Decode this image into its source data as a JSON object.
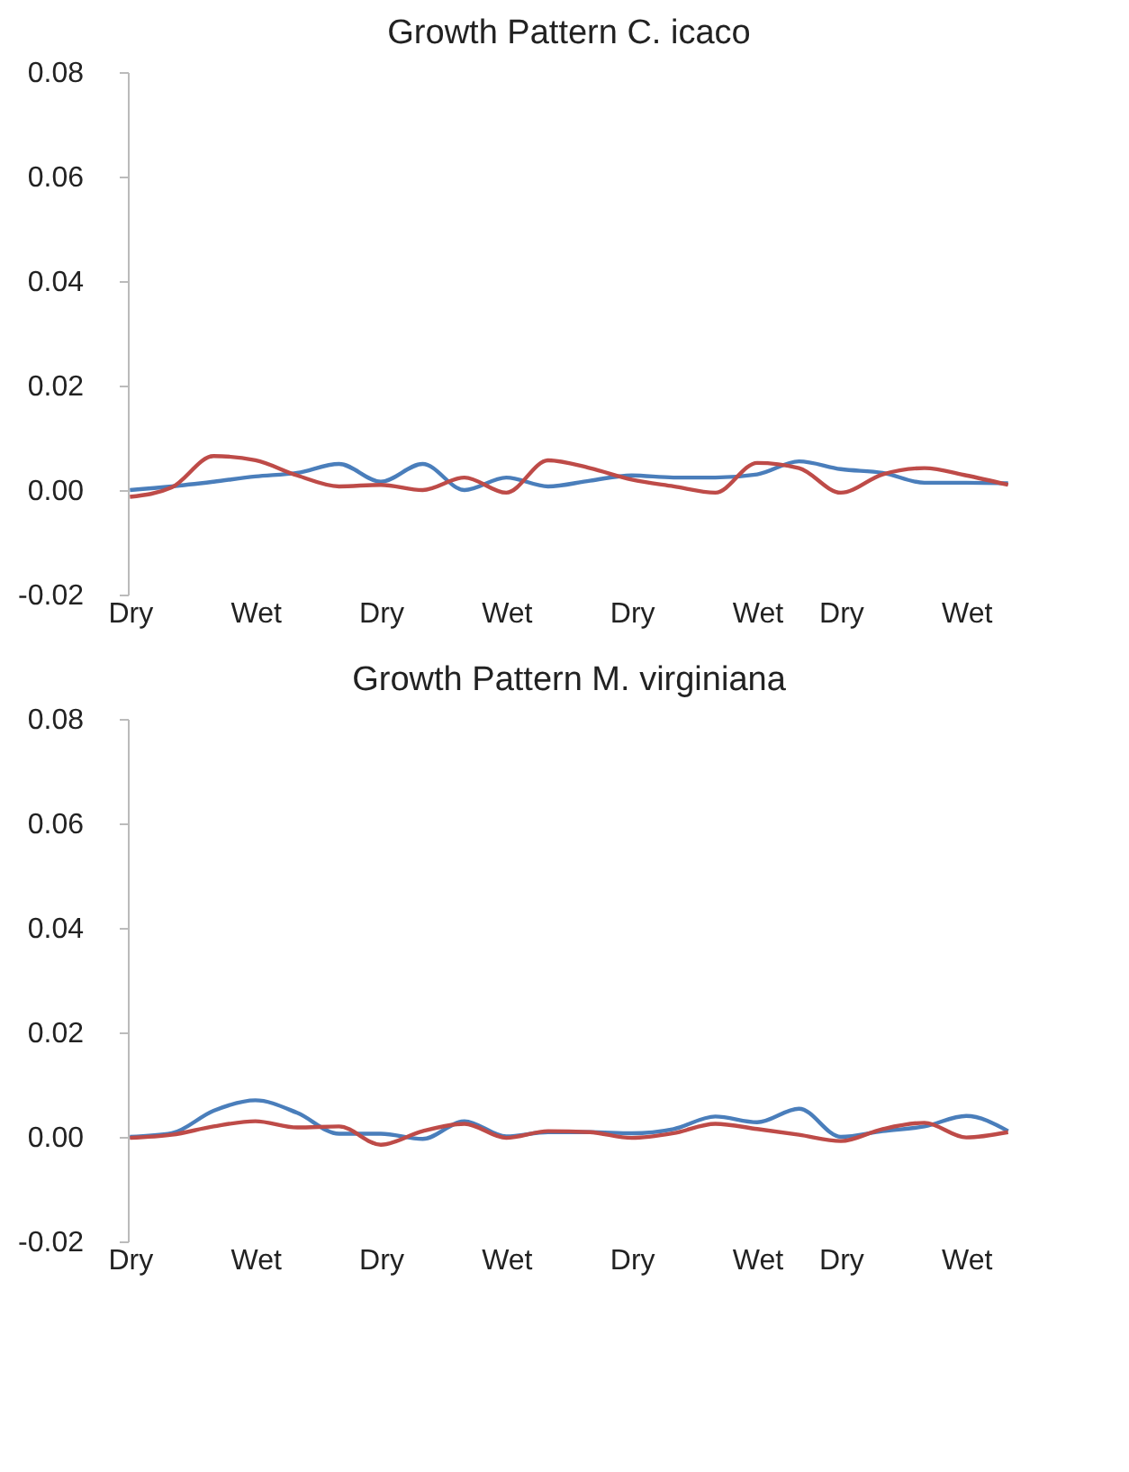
{
  "chart_data": [
    {
      "type": "line",
      "title": "Growth Pattern C. icaco",
      "categories": [
        "Dry",
        null,
        null,
        "Wet",
        null,
        null,
        "Dry",
        null,
        null,
        "Wet",
        null,
        null,
        "Dry",
        null,
        null,
        "Wet",
        null,
        "Dry",
        null,
        null,
        "Wet",
        null
      ],
      "series": [
        {
          "color": "#4a7ebb",
          "values": [
            0.0,
            0.0007,
            0.0016,
            0.0026,
            0.0033,
            0.005,
            0.0016,
            0.005,
            0.0,
            0.0024,
            0.0007,
            0.0018,
            0.0028,
            0.0024,
            0.0024,
            0.003,
            0.0055,
            0.004,
            0.0033,
            0.0014,
            0.0014,
            0.0013
          ]
        },
        {
          "color": "#be4b48",
          "values": [
            -0.0013,
            0.0005,
            0.0065,
            0.0057,
            0.0028,
            0.0007,
            0.001,
            0.0,
            0.0024,
            -0.0005,
            0.0057,
            0.0042,
            0.002,
            0.0007,
            -0.0005,
            0.0052,
            0.0042,
            -0.0005,
            0.003,
            0.0042,
            0.0028,
            0.001
          ]
        }
      ],
      "ylim": [
        -0.02,
        0.08
      ],
      "yticks": [
        {
          "value": -0.02,
          "label": "-0.02"
        },
        {
          "value": 0,
          "label": "0.00"
        },
        {
          "value": 0.02,
          "label": "0.02"
        },
        {
          "value": 0.04,
          "label": "0.04"
        },
        {
          "value": 0.06,
          "label": "0.06"
        },
        {
          "value": 0.08,
          "label": "0.08"
        }
      ],
      "grid": false,
      "legend": false,
      "marker": "none",
      "line_style": "solid"
    },
    {
      "type": "line",
      "title": "Growth Pattern M. virginiana",
      "categories": [
        "Dry",
        null,
        null,
        "Wet",
        null,
        null,
        "Dry",
        null,
        null,
        "Wet",
        null,
        null,
        "Dry",
        null,
        null,
        "Wet",
        null,
        "Dry",
        null,
        null,
        "Wet",
        null
      ],
      "series": [
        {
          "color": "#4a7ebb",
          "values": [
            0.0,
            0.0007,
            0.005,
            0.007,
            0.0046,
            0.0006,
            0.0006,
            -0.0004,
            0.003,
            0.0001,
            0.0009,
            0.0009,
            0.0007,
            0.0015,
            0.0039,
            0.0028,
            0.0054,
            0.0,
            0.0011,
            0.002,
            0.004,
            0.0011
          ]
        },
        {
          "color": "#be4b48",
          "values": [
            -0.0002,
            0.0004,
            0.002,
            0.003,
            0.0018,
            0.002,
            -0.0015,
            0.0011,
            0.0025,
            -0.0002,
            0.0011,
            0.0009,
            -0.0002,
            0.0007,
            0.0025,
            0.0015,
            0.0004,
            -0.0008,
            0.0015,
            0.0027,
            -0.0001,
            0.0009
          ]
        }
      ],
      "ylim": [
        -0.02,
        0.08
      ],
      "yticks": [
        {
          "value": -0.02,
          "label": "-0.02"
        },
        {
          "value": 0,
          "label": "0.00"
        },
        {
          "value": 0.02,
          "label": "0.02"
        },
        {
          "value": 0.04,
          "label": "0.04"
        },
        {
          "value": 0.06,
          "label": "0.06"
        },
        {
          "value": 0.08,
          "label": "0.08"
        }
      ],
      "grid": false,
      "legend": false,
      "marker": "none",
      "line_style": "solid"
    }
  ]
}
